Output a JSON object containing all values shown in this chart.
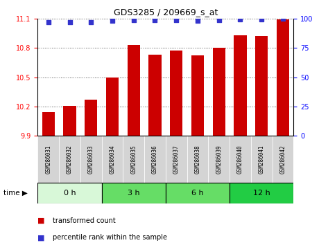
{
  "title": "GDS3285 / 209669_s_at",
  "samples": [
    "GSM286031",
    "GSM286032",
    "GSM286033",
    "GSM286034",
    "GSM286035",
    "GSM286036",
    "GSM286037",
    "GSM286038",
    "GSM286039",
    "GSM286040",
    "GSM286041",
    "GSM286042"
  ],
  "bar_values": [
    10.14,
    10.21,
    10.27,
    10.5,
    10.83,
    10.73,
    10.77,
    10.72,
    10.8,
    10.93,
    10.92,
    11.09
  ],
  "percentile_values": [
    97,
    97,
    97,
    98,
    98.5,
    98.5,
    98.5,
    98,
    98.5,
    99,
    99,
    99.5
  ],
  "bar_color": "#cc0000",
  "percentile_color": "#3333cc",
  "ylim_left": [
    9.9,
    11.1
  ],
  "ylim_right": [
    0,
    100
  ],
  "yticks_left": [
    9.9,
    10.2,
    10.5,
    10.8,
    11.1
  ],
  "yticks_right": [
    0,
    25,
    50,
    75,
    100
  ],
  "group_boundaries": [
    0,
    3,
    6,
    9,
    12
  ],
  "group_labels": [
    "0 h",
    "3 h",
    "6 h",
    "12 h"
  ],
  "group_colors": [
    "#d8f8d8",
    "#66dd66",
    "#66dd66",
    "#22cc44"
  ],
  "legend_bar_label": "transformed count",
  "legend_pct_label": "percentile rank within the sample",
  "time_label": "time",
  "sample_box_color": "#d4d4d4",
  "background_color": "#ffffff",
  "grid_color": "#555555"
}
